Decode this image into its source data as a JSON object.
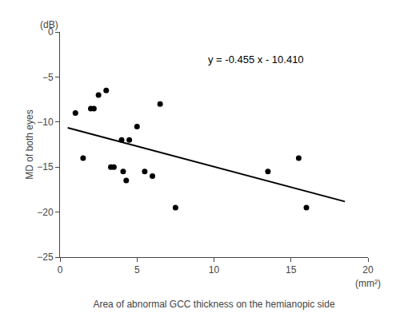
{
  "chart_data": {
    "type": "scatter",
    "xlabel": "Area of abnormal GCC thickness on the hemianopic side",
    "ylabel": "MD of both eyes",
    "series": [
      {
        "type": "scatter",
        "marker": "circle",
        "color": "#000000",
        "x": [
          1.0,
          1.5,
          2.0,
          2.2,
          2.5,
          3.0,
          3.3,
          3.5,
          4.0,
          4.1,
          4.3,
          4.5,
          5.0,
          5.5,
          6.0,
          6.5,
          7.5,
          13.5,
          15.5,
          16.0
        ],
        "values": [
          -9.0,
          -14.0,
          -8.5,
          -8.5,
          -7.0,
          -6.5,
          -15.0,
          -15.0,
          -12.0,
          -15.5,
          -16.5,
          -12.0,
          -10.5,
          -15.5,
          -16.0,
          -8.0,
          -19.5,
          -15.5,
          -14.0,
          -19.5
        ]
      },
      {
        "type": "line",
        "line_style": "solid",
        "color": "#000000",
        "x": [
          0.5,
          18.5
        ],
        "values": [
          -10.6375,
          -18.8275
        ]
      }
    ],
    "annotations": [
      {
        "text": "y = -0.455 x - 10.410",
        "x": 9.5,
        "y": -2.2
      },
      {
        "text": "(dB)",
        "axis": "y"
      },
      {
        "text": "(mm²)",
        "axis": "x"
      }
    ],
    "xlim": [
      0,
      20
    ],
    "ylim": [
      -25,
      0
    ],
    "xticks": [
      0,
      5,
      10,
      15,
      20
    ],
    "yticks": [
      0,
      -5,
      -10,
      -15,
      -20,
      -25
    ],
    "grid": false
  }
}
